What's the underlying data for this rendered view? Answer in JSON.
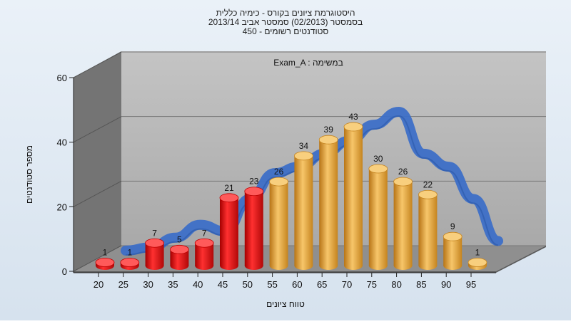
{
  "chart_data": {
    "type": "bar",
    "title_lines": [
      "היסטוגרמת ציונים בקורס - כימיה כללית",
      "בסמסטר  (02/2013)  סמסטר אביב 2013/14",
      "450 - סטודנטים רשומים"
    ],
    "legend_label": "Exam_A : במשימה",
    "xlabel": "טווח ציונים",
    "ylabel": "מספר סטודנטים",
    "ylim": [
      0,
      60
    ],
    "yticks": [
      0,
      20,
      40,
      60
    ],
    "categories": [
      "20",
      "25",
      "30",
      "35",
      "40",
      "45",
      "50",
      "55",
      "60",
      "65",
      "70",
      "75",
      "80",
      "85",
      "90",
      "95"
    ],
    "values": [
      1,
      1,
      7,
      5,
      7,
      21,
      23,
      26,
      34,
      39,
      43,
      30,
      26,
      22,
      9,
      1
    ],
    "failing_threshold_index": 7,
    "curve_values": [
      2,
      3,
      6,
      10,
      8,
      18,
      26,
      28,
      32,
      36,
      41,
      45,
      32,
      28,
      18,
      5
    ],
    "colors": {
      "fail": "#e01818",
      "pass": "#e6a23c",
      "curve": "#3d6fc7",
      "background": "#dde8f3",
      "floor": "#8c8c8c",
      "back_wall": "#b5b5b5",
      "side_wall": "#6e6e6e"
    },
    "grid": true
  }
}
